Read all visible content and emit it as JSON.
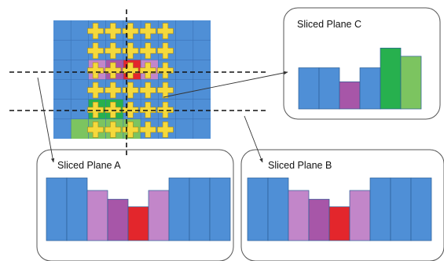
{
  "panels": {
    "a": {
      "label": "Sliced Plane A",
      "bars": [
        {
          "height": 5,
          "color": "blue"
        },
        {
          "height": 5,
          "color": "blue"
        },
        {
          "height": 4,
          "color": "light-purple"
        },
        {
          "height": 3.3,
          "color": "purple"
        },
        {
          "height": 2.7,
          "color": "red"
        },
        {
          "height": 4,
          "color": "light-purple"
        },
        {
          "height": 5,
          "color": "blue"
        },
        {
          "height": 5,
          "color": "blue"
        },
        {
          "height": 5,
          "color": "blue"
        }
      ]
    },
    "b": {
      "label": "Sliced Plane B",
      "bars": [
        {
          "height": 5,
          "color": "blue"
        },
        {
          "height": 5,
          "color": "blue"
        },
        {
          "height": 4,
          "color": "light-purple"
        },
        {
          "height": 3.3,
          "color": "purple"
        },
        {
          "height": 2.7,
          "color": "red"
        },
        {
          "height": 4,
          "color": "light-purple"
        },
        {
          "height": 5,
          "color": "blue"
        },
        {
          "height": 5,
          "color": "blue"
        },
        {
          "height": 5,
          "color": "blue"
        }
      ]
    },
    "c": {
      "label": "Sliced Plane C",
      "bars": [
        {
          "height": 5,
          "color": "blue"
        },
        {
          "height": 5,
          "color": "blue"
        },
        {
          "height": 3.3,
          "color": "purple"
        },
        {
          "height": 5,
          "color": "blue"
        },
        {
          "height": 7.4,
          "color": "green"
        },
        {
          "height": 6.4,
          "color": "light-green"
        }
      ]
    }
  },
  "colors": {
    "blue": "#4f8fd6",
    "light-purple": "#c286c9",
    "purple": "#a756a8",
    "red": "#e3262c",
    "green": "#27b04e",
    "light-green": "#7cc460",
    "grid": "#4f8fd6",
    "marker": "#f5d93c",
    "marker-outline": "#a58a1a"
  },
  "grid": {
    "rows": 6,
    "cols": 9,
    "highlight_cells": [
      {
        "row": 2,
        "col": 2,
        "color": "light-purple"
      },
      {
        "row": 2,
        "col": 3,
        "color": "purple"
      },
      {
        "row": 2,
        "col": 4,
        "color": "red"
      },
      {
        "row": 2,
        "col": 5,
        "color": "light-purple"
      },
      {
        "row": 4,
        "col": 2,
        "color": "green"
      },
      {
        "row": 4,
        "col": 3,
        "color": "green"
      },
      {
        "row": 5,
        "col": 1,
        "color": "light-green"
      },
      {
        "row": 5,
        "col": 2,
        "color": "light-green"
      },
      {
        "row": 5,
        "col": 3,
        "color": "light-green"
      },
      {
        "row": 5,
        "col": 4,
        "color": "light-green"
      }
    ],
    "marker_cols": [
      2,
      3,
      4,
      5,
      6
    ],
    "marker_rows": [
      0,
      1,
      2,
      3,
      4,
      5
    ]
  }
}
